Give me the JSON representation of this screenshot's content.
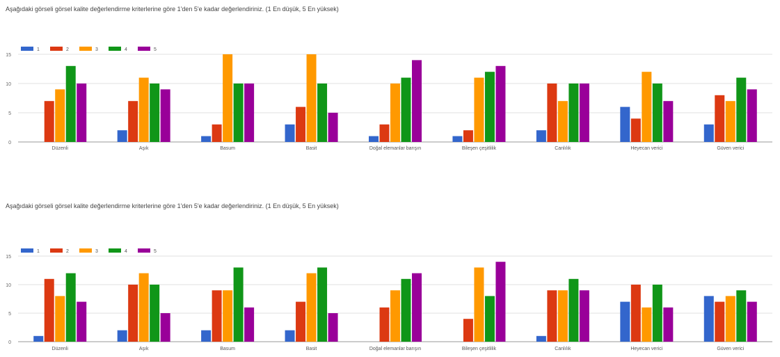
{
  "colors": [
    "#3366cc",
    "#dc3912",
    "#ff9900",
    "#109618",
    "#990099"
  ],
  "chart_data": [
    {
      "type": "bar",
      "title": "Aşağıdaki görseli görsel kalite değerlendirme kriterlerine göre 1'den 5'e kadar değerlendiriniz. (1 En düşük, 5 En yüksek)",
      "categories": [
        "Düzenli",
        "Aşık",
        "Basum",
        "Basit",
        "Doğal elemanlar barışın",
        "Bileşen çeşitlilik",
        "Canlılık",
        "Heyecan verici",
        "Güven verici"
      ],
      "series": [
        {
          "name": "1",
          "values": [
            0,
            2,
            1,
            3,
            1,
            1,
            2,
            6,
            3
          ]
        },
        {
          "name": "2",
          "values": [
            7,
            7,
            3,
            6,
            3,
            2,
            10,
            4,
            8
          ]
        },
        {
          "name": "3",
          "values": [
            9,
            11,
            15,
            15,
            10,
            11,
            7,
            12,
            7
          ]
        },
        {
          "name": "4",
          "values": [
            13,
            10,
            10,
            10,
            11,
            12,
            10,
            10,
            11
          ]
        },
        {
          "name": "5",
          "values": [
            10,
            9,
            10,
            5,
            14,
            13,
            10,
            7,
            9
          ]
        }
      ],
      "yticks": [
        0,
        5,
        10,
        15
      ],
      "ylim": [
        0,
        15
      ],
      "legend": "top-left",
      "grid": true
    },
    {
      "type": "bar",
      "title": "Aşağıdaki görseli görsel kalite değerlendirme kriterlerine göre 1'den 5'e kadar değerlendiriniz. (1 En düşük, 5 En yüksek)",
      "categories": [
        "Düzenli",
        "Aşık",
        "Basum",
        "Basit",
        "Doğal elemanlar barışın",
        "Bileşen çeşitlilik",
        "Canlılık",
        "Heyecan verici",
        "Güven verici"
      ],
      "series": [
        {
          "name": "1",
          "values": [
            1,
            2,
            2,
            2,
            0,
            0,
            1,
            7,
            8
          ]
        },
        {
          "name": "2",
          "values": [
            11,
            10,
            9,
            7,
            6,
            4,
            9,
            10,
            7
          ]
        },
        {
          "name": "3",
          "values": [
            8,
            12,
            9,
            12,
            9,
            13,
            9,
            6,
            8
          ]
        },
        {
          "name": "4",
          "values": [
            12,
            10,
            13,
            13,
            11,
            8,
            11,
            10,
            9
          ]
        },
        {
          "name": "5",
          "values": [
            7,
            5,
            6,
            5,
            12,
            14,
            9,
            6,
            7
          ]
        }
      ],
      "yticks": [
        0,
        5,
        10,
        15
      ],
      "ylim": [
        0,
        15
      ],
      "legend": "top-left",
      "grid": true
    }
  ]
}
